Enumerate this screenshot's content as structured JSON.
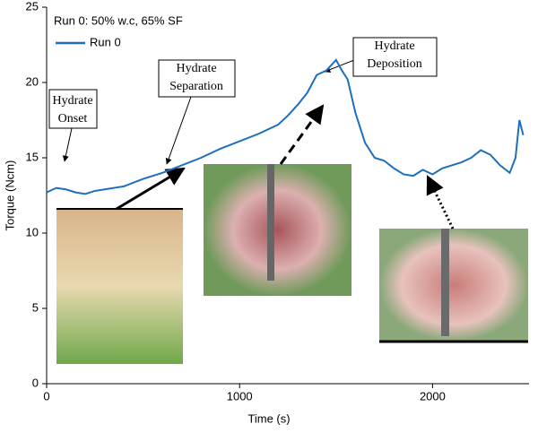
{
  "chart_data": {
    "type": "line",
    "title": "Run 0: 50% w.c, 65% SF",
    "x_label": "Time (s)",
    "y_label": "Torque (Ncm)",
    "xlim": [
      0,
      2500
    ],
    "xticks": [
      0,
      1000,
      2000
    ],
    "ylim": [
      0,
      25
    ],
    "yticks": [
      0,
      5,
      10,
      15,
      20,
      25
    ],
    "x": [
      0,
      50,
      100,
      150,
      200,
      250,
      300,
      400,
      500,
      600,
      700,
      800,
      900,
      1000,
      1100,
      1200,
      1250,
      1300,
      1350,
      1400,
      1450,
      1500,
      1530,
      1560,
      1600,
      1650,
      1700,
      1750,
      1800,
      1850,
      1900,
      1950,
      2000,
      2050,
      2100,
      2150,
      2200,
      2250,
      2300,
      2350,
      2400,
      2430,
      2450,
      2470
    ],
    "series": [
      {
        "name": "Run 0",
        "color": "#1f6fbf",
        "values": [
          12.7,
          13.0,
          12.9,
          12.7,
          12.6,
          12.8,
          12.9,
          13.1,
          13.6,
          14.0,
          14.5,
          15.0,
          15.6,
          16.1,
          16.6,
          17.2,
          17.8,
          18.5,
          19.3,
          20.5,
          20.8,
          21.5,
          20.8,
          20.2,
          18.0,
          16.0,
          15.0,
          14.8,
          14.3,
          13.9,
          13.8,
          14.2,
          13.9,
          14.3,
          14.5,
          14.7,
          15.0,
          15.5,
          15.2,
          14.5,
          14.0,
          15.0,
          17.5,
          16.5
        ]
      }
    ],
    "annotations": [
      "Hydrate Onset",
      "Hydrate Separation",
      "Hydrate Deposition"
    ]
  }
}
